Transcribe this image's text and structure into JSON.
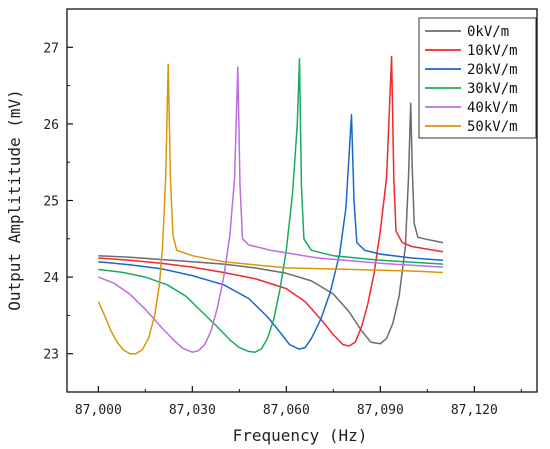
{
  "chart_data": {
    "type": "line",
    "title": "",
    "xlabel": "Frequency (Hz)",
    "ylabel": "Output Amplititude (mV)",
    "xlim": [
      86990,
      87140
    ],
    "ylim": [
      22.5,
      27.5
    ],
    "xticks": [
      87000,
      87030,
      87060,
      87090,
      87120
    ],
    "xtick_labels": [
      "87,000",
      "87,030",
      "87,060",
      "87,090",
      "87,120"
    ],
    "yticks": [
      23,
      24,
      25,
      26,
      27
    ],
    "ytick_labels": [
      "23",
      "24",
      "25",
      "26",
      "27"
    ],
    "grid": false,
    "legend_position": "top-right",
    "series": [
      {
        "name": "0kV/m",
        "color": "#6b6b6b",
        "points": [
          [
            87000,
            24.28
          ],
          [
            87010,
            24.26
          ],
          [
            87020,
            24.23
          ],
          [
            87030,
            24.2
          ],
          [
            87040,
            24.17
          ],
          [
            87050,
            24.12
          ],
          [
            87060,
            24.05
          ],
          [
            87068,
            23.95
          ],
          [
            87075,
            23.78
          ],
          [
            87080,
            23.55
          ],
          [
            87084,
            23.3
          ],
          [
            87087,
            23.15
          ],
          [
            87090,
            23.13
          ],
          [
            87092,
            23.2
          ],
          [
            87094,
            23.4
          ],
          [
            87096,
            23.75
          ],
          [
            87098,
            24.4
          ],
          [
            87099,
            25.3
          ],
          [
            87099.7,
            26.27
          ],
          [
            87100.2,
            25.4
          ],
          [
            87100.8,
            24.7
          ],
          [
            87102,
            24.52
          ],
          [
            87104,
            24.5
          ],
          [
            87110,
            24.45
          ]
        ]
      },
      {
        "name": "10kV/m",
        "color": "#ee2a2a",
        "points": [
          [
            87000,
            24.25
          ],
          [
            87010,
            24.22
          ],
          [
            87020,
            24.18
          ],
          [
            87030,
            24.13
          ],
          [
            87040,
            24.06
          ],
          [
            87050,
            23.98
          ],
          [
            87060,
            23.85
          ],
          [
            87066,
            23.68
          ],
          [
            87071,
            23.45
          ],
          [
            87075,
            23.25
          ],
          [
            87078,
            23.12
          ],
          [
            87080,
            23.1
          ],
          [
            87082,
            23.15
          ],
          [
            87084,
            23.35
          ],
          [
            87086,
            23.65
          ],
          [
            87088,
            24.05
          ],
          [
            87090,
            24.6
          ],
          [
            87092,
            25.3
          ],
          [
            87093.6,
            26.88
          ],
          [
            87094.3,
            25.3
          ],
          [
            87095,
            24.6
          ],
          [
            87097,
            24.45
          ],
          [
            87100,
            24.4
          ],
          [
            87110,
            24.33
          ]
        ]
      },
      {
        "name": "20kV/m",
        "color": "#1a66cc",
        "points": [
          [
            87000,
            24.2
          ],
          [
            87010,
            24.16
          ],
          [
            87020,
            24.11
          ],
          [
            87030,
            24.02
          ],
          [
            87040,
            23.9
          ],
          [
            87048,
            23.72
          ],
          [
            87054,
            23.48
          ],
          [
            87058,
            23.28
          ],
          [
            87061,
            23.12
          ],
          [
            87064,
            23.06
          ],
          [
            87066,
            23.08
          ],
          [
            87068,
            23.2
          ],
          [
            87071,
            23.45
          ],
          [
            87074,
            23.8
          ],
          [
            87077,
            24.3
          ],
          [
            87079,
            24.9
          ],
          [
            87080.8,
            26.12
          ],
          [
            87081.6,
            25.0
          ],
          [
            87082.5,
            24.45
          ],
          [
            87085,
            24.35
          ],
          [
            87090,
            24.3
          ],
          [
            87100,
            24.25
          ],
          [
            87110,
            24.22
          ]
        ]
      },
      {
        "name": "30kV/m",
        "color": "#1aaa5a",
        "points": [
          [
            87000,
            24.1
          ],
          [
            87008,
            24.06
          ],
          [
            87015,
            24.0
          ],
          [
            87022,
            23.9
          ],
          [
            87028,
            23.75
          ],
          [
            87033,
            23.55
          ],
          [
            87038,
            23.35
          ],
          [
            87042,
            23.18
          ],
          [
            87045,
            23.08
          ],
          [
            87048,
            23.03
          ],
          [
            87050,
            23.02
          ],
          [
            87052,
            23.06
          ],
          [
            87054,
            23.2
          ],
          [
            87056,
            23.45
          ],
          [
            87058,
            23.85
          ],
          [
            87060,
            24.35
          ],
          [
            87062,
            25.1
          ],
          [
            87063.5,
            26.0
          ],
          [
            87064.2,
            26.85
          ],
          [
            87064.8,
            25.2
          ],
          [
            87065.6,
            24.5
          ],
          [
            87068,
            24.35
          ],
          [
            87075,
            24.28
          ],
          [
            87090,
            24.22
          ],
          [
            87110,
            24.17
          ]
        ]
      },
      {
        "name": "40kV/m",
        "color": "#bb6ee0",
        "points": [
          [
            87000,
            24.0
          ],
          [
            87005,
            23.92
          ],
          [
            87010,
            23.78
          ],
          [
            87015,
            23.58
          ],
          [
            87020,
            23.35
          ],
          [
            87024,
            23.18
          ],
          [
            87027,
            23.07
          ],
          [
            87030,
            23.02
          ],
          [
            87032,
            23.04
          ],
          [
            87034,
            23.12
          ],
          [
            87036,
            23.3
          ],
          [
            87038,
            23.6
          ],
          [
            87040,
            24.0
          ],
          [
            87042,
            24.55
          ],
          [
            87043.5,
            25.3
          ],
          [
            87044.5,
            26.74
          ],
          [
            87045.2,
            25.2
          ],
          [
            87046,
            24.5
          ],
          [
            87048,
            24.42
          ],
          [
            87055,
            24.35
          ],
          [
            87070,
            24.25
          ],
          [
            87090,
            24.18
          ],
          [
            87110,
            24.13
          ]
        ]
      },
      {
        "name": "50kV/m",
        "color": "#d9960a",
        "points": [
          [
            87000,
            23.68
          ],
          [
            87002,
            23.5
          ],
          [
            87004,
            23.3
          ],
          [
            87006,
            23.15
          ],
          [
            87008,
            23.05
          ],
          [
            87010,
            23.0
          ],
          [
            87012,
            23.0
          ],
          [
            87014,
            23.05
          ],
          [
            87016,
            23.2
          ],
          [
            87018,
            23.5
          ],
          [
            87019.5,
            23.9
          ],
          [
            87020.5,
            24.4
          ],
          [
            87021.5,
            25.3
          ],
          [
            87022.3,
            26.78
          ],
          [
            87023,
            25.3
          ],
          [
            87023.8,
            24.55
          ],
          [
            87025,
            24.35
          ],
          [
            87030,
            24.28
          ],
          [
            87040,
            24.2
          ],
          [
            87060,
            24.12
          ],
          [
            87080,
            24.1
          ],
          [
            87100,
            24.08
          ],
          [
            87110,
            24.06
          ]
        ]
      }
    ]
  }
}
